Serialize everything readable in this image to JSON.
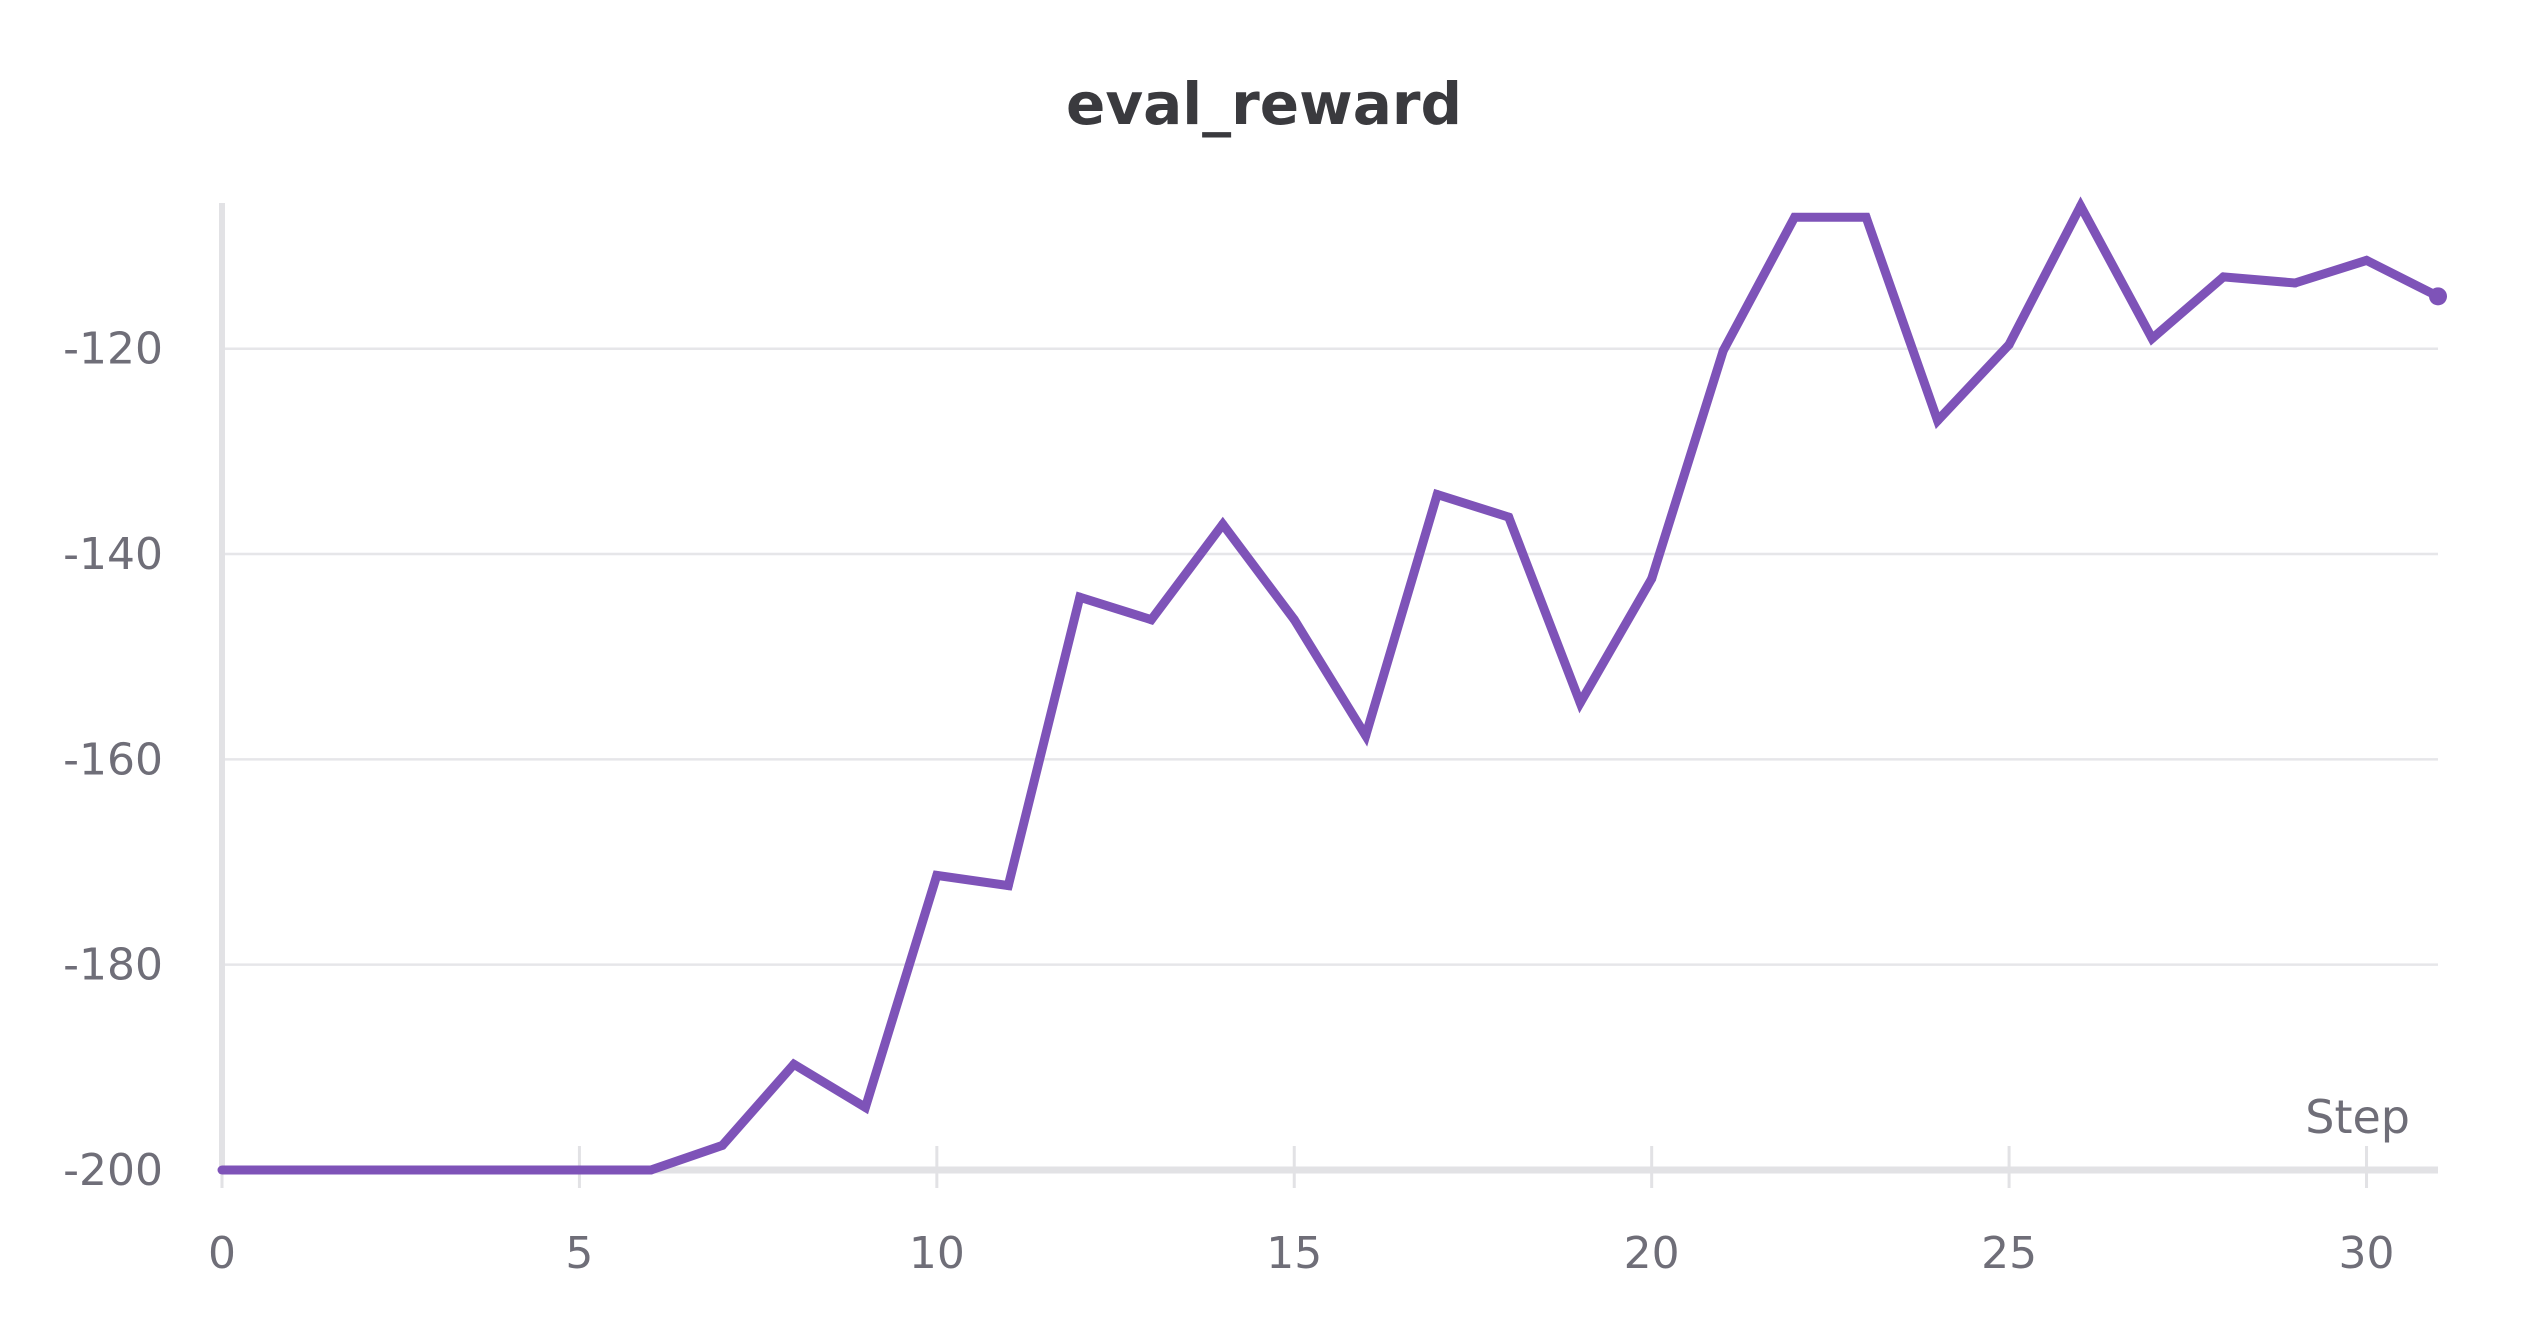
{
  "chart_data": {
    "type": "line",
    "title": "eval_reward",
    "xlabel": "Step",
    "ylabel": "",
    "xlim": [
      0,
      31
    ],
    "ylim": [
      -200,
      -106
    ],
    "x_ticks": [
      0,
      5,
      10,
      15,
      20,
      25,
      30
    ],
    "y_ticks": [
      -200,
      -180,
      -160,
      -140,
      -120
    ],
    "grid": true,
    "legend": "none",
    "series": [
      {
        "color": "#7e53b8",
        "x": [
          0,
          1,
          2,
          3,
          4,
          5,
          6,
          7,
          8,
          9,
          10,
          11,
          12,
          13,
          14,
          15,
          16,
          17,
          18,
          19,
          20,
          21,
          22,
          23,
          24,
          25,
          26,
          27,
          28,
          29,
          30,
          31
        ],
        "y": [
          -200,
          -200,
          -200,
          -200,
          -200,
          -200,
          -200,
          -197.6,
          -189.7,
          -193.9,
          -171.3,
          -172.3,
          -144.2,
          -146.4,
          -137.1,
          -146.4,
          -157.7,
          -134.2,
          -136.4,
          -154.5,
          -142.4,
          -120.2,
          -107.2,
          -107.2,
          -127.0,
          -119.6,
          -106.1,
          -119.0,
          -113.0,
          -113.6,
          -111.4,
          -114.9
        ]
      }
    ]
  }
}
